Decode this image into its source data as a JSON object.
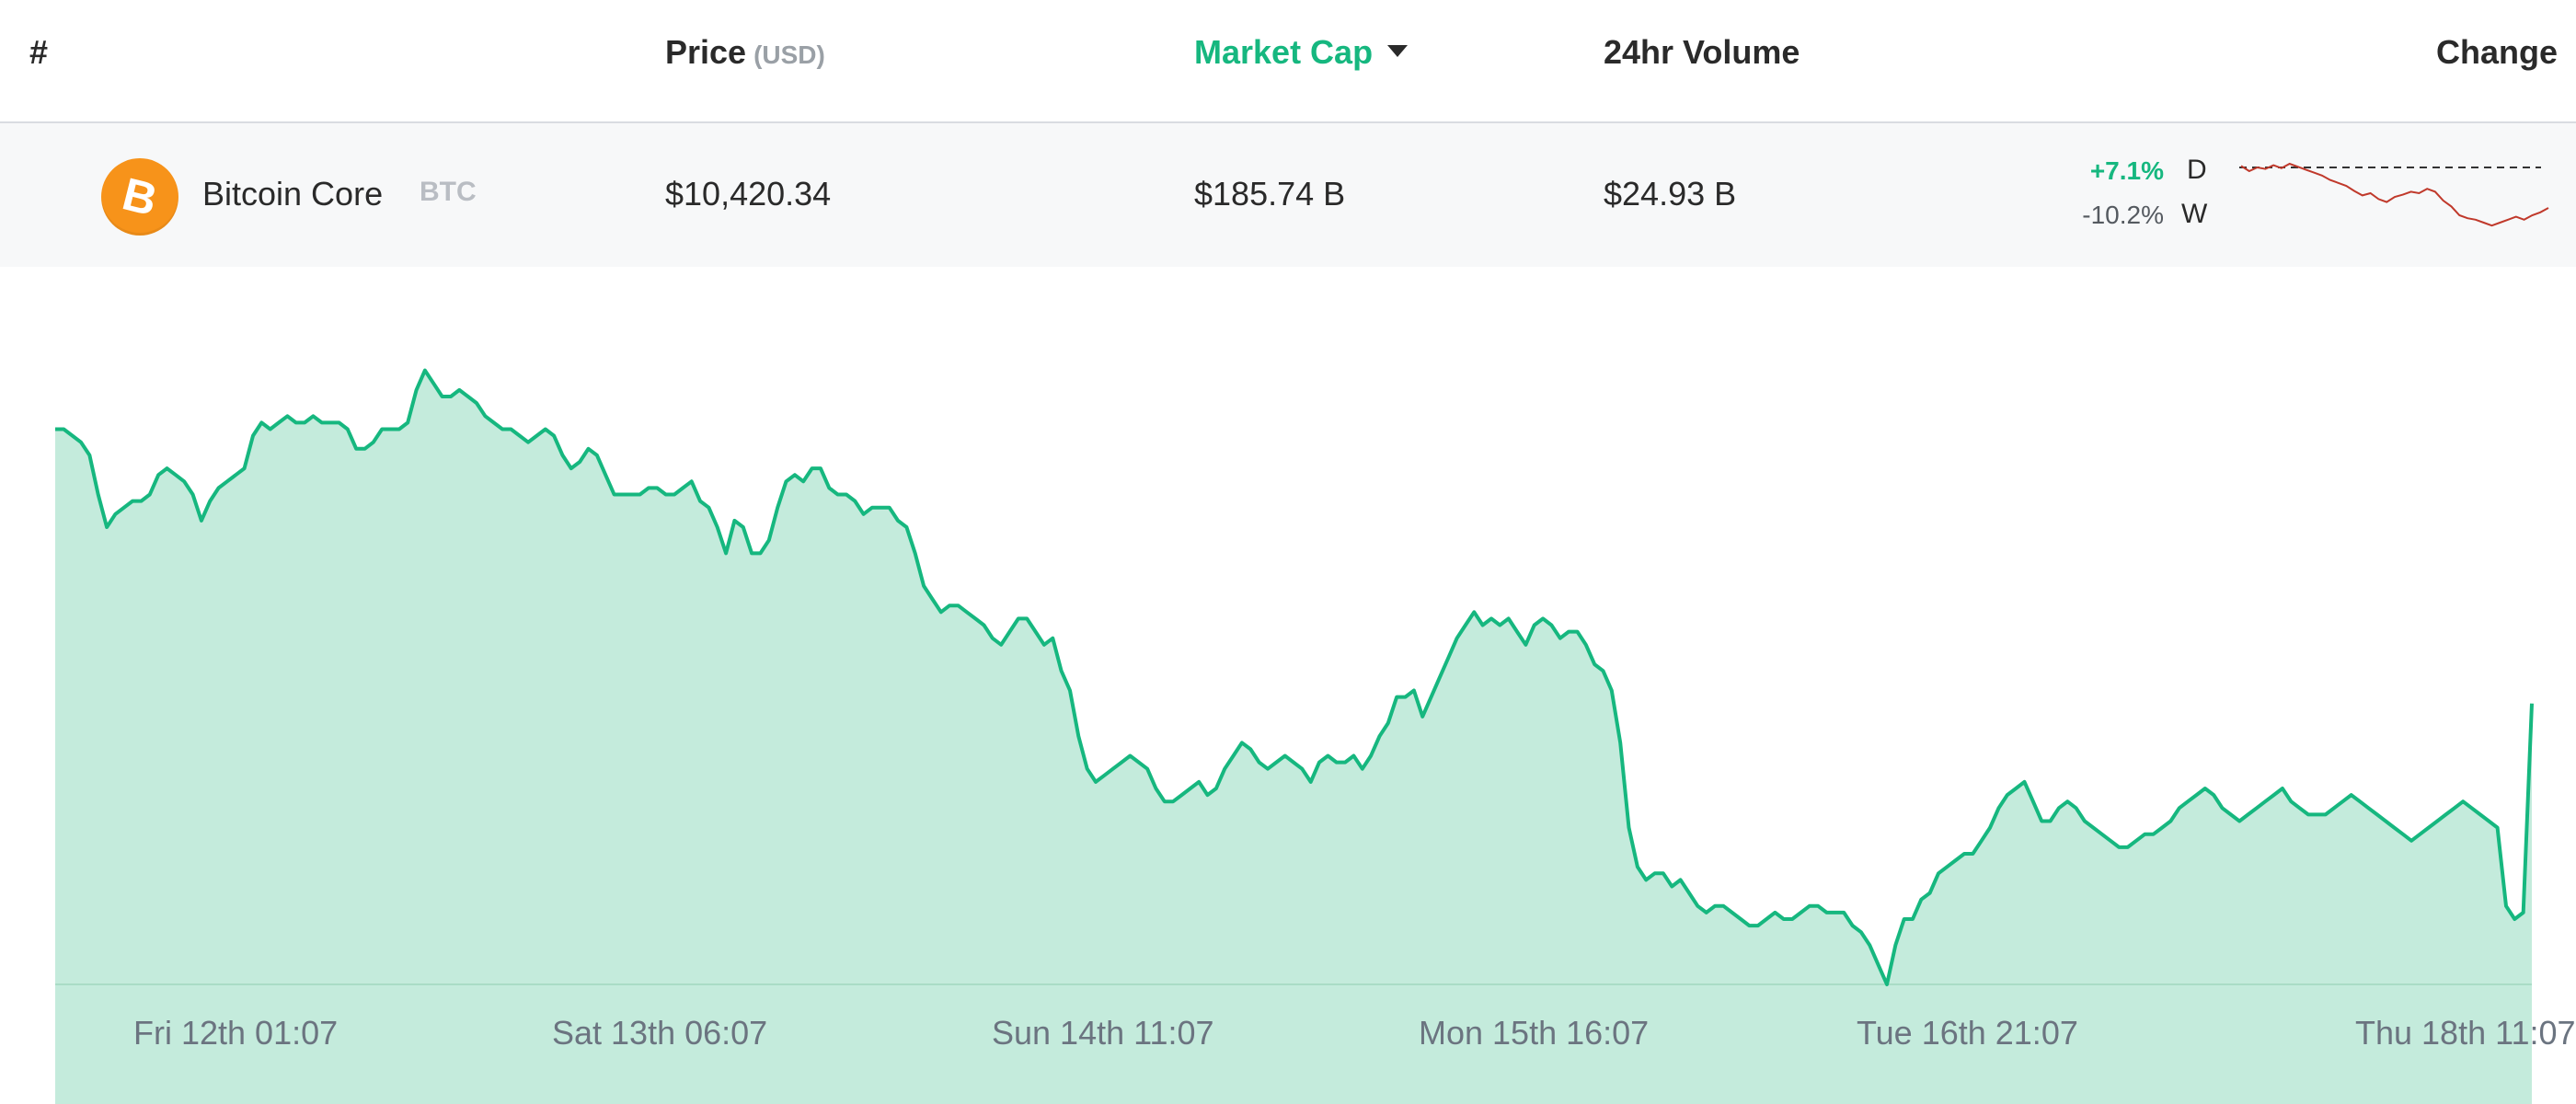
{
  "header": {
    "num_label": "#",
    "price_label": "Price",
    "price_unit": "(USD)",
    "market_cap_label": "Market Cap",
    "volume_label": "24hr Volume",
    "change_label": "Change"
  },
  "coin": {
    "icon": "bitcoin-icon",
    "icon_glyph": "B",
    "name": "Bitcoin Core",
    "symbol": "BTC",
    "price": "$10,420.34",
    "market_cap": "$185.74 B",
    "volume_24h": "$24.93 B",
    "change_day": "+7.1%",
    "change_day_period": "D",
    "change_week": "-10.2%",
    "change_week_period": "W"
  },
  "colors": {
    "accent": "#16b77f",
    "area_fill": "#c4ebdc",
    "sparkline": "#c0392b",
    "coin": "#f7931a"
  },
  "chart_data": {
    "type": "area",
    "x_ticks": [
      "Fri 12th 01:07",
      "Sat 13th 06:07",
      "Sun 14th 11:07",
      "Mon 15th 16:07",
      "Tue 16th 21:07",
      "Thu 18th 11:07"
    ],
    "ylim": [
      0,
      100
    ],
    "values": [
      85,
      85,
      84,
      83,
      81,
      75,
      70,
      72,
      73,
      74,
      74,
      75,
      78,
      79,
      78,
      77,
      75,
      71,
      74,
      76,
      77,
      78,
      79,
      84,
      86,
      85,
      86,
      87,
      86,
      86,
      87,
      86,
      86,
      86,
      85,
      82,
      82,
      83,
      85,
      85,
      85,
      86,
      91,
      94,
      92,
      90,
      90,
      91,
      90,
      89,
      87,
      86,
      85,
      85,
      84,
      83,
      84,
      85,
      84,
      81,
      79,
      80,
      82,
      81,
      78,
      75,
      75,
      75,
      75,
      76,
      76,
      75,
      75,
      76,
      77,
      74,
      73,
      70,
      66,
      71,
      70,
      66,
      66,
      68,
      73,
      77,
      78,
      77,
      79,
      79,
      76,
      75,
      75,
      74,
      72,
      73,
      73,
      73,
      71,
      70,
      66,
      61,
      59,
      57,
      58,
      58,
      57,
      56,
      55,
      53,
      52,
      54,
      56,
      56,
      54,
      52,
      53,
      48,
      45,
      38,
      33,
      31,
      32,
      33,
      34,
      35,
      34,
      33,
      30,
      28,
      28,
      29,
      30,
      31,
      29,
      30,
      33,
      35,
      37,
      36,
      34,
      33,
      34,
      35,
      34,
      33,
      31,
      34,
      35,
      34,
      34,
      35,
      33,
      35,
      38,
      40,
      44,
      44,
      45,
      41,
      44,
      47,
      50,
      53,
      55,
      57,
      55,
      56,
      55,
      56,
      54,
      52,
      55,
      56,
      55,
      53,
      54,
      54,
      52,
      49,
      48,
      45,
      37,
      24,
      18,
      16,
      17,
      17,
      15,
      16,
      14,
      12,
      11,
      12,
      12,
      11,
      10,
      9,
      9,
      10,
      11,
      10,
      10,
      11,
      12,
      12,
      11,
      11,
      11,
      9,
      8,
      6,
      3,
      0,
      6,
      10,
      10,
      13,
      14,
      17,
      18,
      19,
      20,
      20,
      22,
      24,
      27,
      29,
      30,
      31,
      28,
      25,
      25,
      27,
      28,
      27,
      25,
      24,
      23,
      22,
      21,
      21,
      22,
      23,
      23,
      24,
      25,
      27,
      28,
      29,
      30,
      29,
      27,
      26,
      25,
      26,
      27,
      28,
      29,
      30,
      28,
      27,
      26,
      26,
      26,
      27,
      28,
      29,
      28,
      27,
      26,
      25,
      24,
      23,
      22,
      23,
      24,
      25,
      26,
      27,
      28,
      27,
      26,
      25,
      24,
      12,
      10,
      11,
      43
    ]
  },
  "sparkline_data": [
    0.97,
    0.9,
    0.95,
    0.93,
    0.98,
    0.94,
    1.0,
    0.96,
    0.92,
    0.88,
    0.84,
    0.78,
    0.74,
    0.7,
    0.63,
    0.57,
    0.6,
    0.52,
    0.48,
    0.55,
    0.58,
    0.62,
    0.6,
    0.66,
    0.62,
    0.5,
    0.42,
    0.3,
    0.26,
    0.24,
    0.2,
    0.16,
    0.2,
    0.24,
    0.28,
    0.24,
    0.3,
    0.34,
    0.4
  ]
}
